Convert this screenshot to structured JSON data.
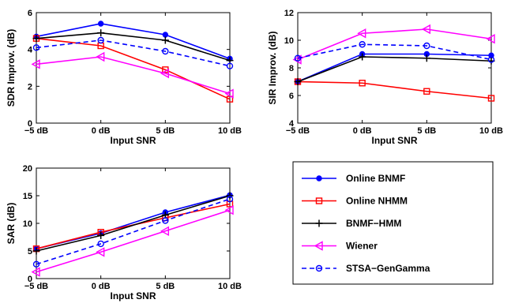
{
  "chart_data": [
    {
      "type": "line",
      "xlabel": "Input SNR",
      "ylabel": "SDR Improv. (dB)",
      "categories": [
        "−5 dB",
        "0 dB",
        "5 dB",
        "10 dB"
      ],
      "ylim": [
        0,
        6
      ],
      "yticks": [
        "0",
        "2",
        "4",
        "6"
      ],
      "grid": false,
      "series": [
        {
          "name": "Online BNMF",
          "values": [
            4.7,
            5.4,
            4.8,
            3.5
          ],
          "color": "#0000ff",
          "marker": "dot",
          "dash": "solid"
        },
        {
          "name": "Online NHMM",
          "values": [
            4.6,
            4.2,
            2.9,
            1.3
          ],
          "color": "#ff0000",
          "marker": "square",
          "dash": "solid"
        },
        {
          "name": "BNMF−HMM",
          "values": [
            4.6,
            4.9,
            4.5,
            3.4
          ],
          "color": "#000000",
          "marker": "plus",
          "dash": "solid"
        },
        {
          "name": "Wiener",
          "values": [
            3.2,
            3.6,
            2.7,
            1.6
          ],
          "color": "#ff00ff",
          "marker": "triangle-left",
          "dash": "solid"
        },
        {
          "name": "STSA−GenGamma",
          "values": [
            4.1,
            4.5,
            3.9,
            3.1
          ],
          "color": "#0000ff",
          "marker": "circle",
          "dash": "dashed"
        }
      ]
    },
    {
      "type": "line",
      "xlabel": "Input SNR",
      "ylabel": "SIR Improv. (dB)",
      "categories": [
        "−5 dB",
        "0 dB",
        "5 dB",
        "10 dB"
      ],
      "ylim": [
        4,
        12
      ],
      "yticks": [
        "4",
        "6",
        "8",
        "10",
        "12"
      ],
      "grid": false,
      "series": [
        {
          "name": "Online BNMF",
          "values": [
            7.0,
            9.0,
            9.0,
            8.9
          ],
          "color": "#0000ff",
          "marker": "dot",
          "dash": "solid"
        },
        {
          "name": "Online NHMM",
          "values": [
            7.0,
            6.9,
            6.3,
            5.8
          ],
          "color": "#ff0000",
          "marker": "square",
          "dash": "solid"
        },
        {
          "name": "BNMF−HMM",
          "values": [
            7.0,
            8.8,
            8.7,
            8.5
          ],
          "color": "#000000",
          "marker": "plus",
          "dash": "solid"
        },
        {
          "name": "Wiener",
          "values": [
            8.6,
            10.5,
            10.8,
            10.1
          ],
          "color": "#ff00ff",
          "marker": "triangle-left",
          "dash": "solid"
        },
        {
          "name": "STSA−GenGamma",
          "values": [
            8.7,
            9.7,
            9.6,
            8.6
          ],
          "color": "#0000ff",
          "marker": "circle",
          "dash": "dashed"
        }
      ]
    },
    {
      "type": "line",
      "xlabel": "Input SNR",
      "ylabel": "SAR (dB)",
      "categories": [
        "−5 dB",
        "0 dB",
        "5 dB",
        "10 dB"
      ],
      "ylim": [
        0,
        20
      ],
      "yticks": [
        "0",
        "5",
        "10",
        "15",
        "20"
      ],
      "grid": false,
      "series": [
        {
          "name": "Online BNMF",
          "values": [
            5.4,
            8.2,
            12.0,
            15.1
          ],
          "color": "#0000ff",
          "marker": "dot",
          "dash": "solid"
        },
        {
          "name": "Online NHMM",
          "values": [
            5.4,
            8.4,
            11.0,
            13.5
          ],
          "color": "#ff0000",
          "marker": "square",
          "dash": "solid"
        },
        {
          "name": "BNMF−HMM",
          "values": [
            5.0,
            7.8,
            11.5,
            15.0
          ],
          "color": "#000000",
          "marker": "plus",
          "dash": "solid"
        },
        {
          "name": "Wiener",
          "values": [
            1.2,
            4.8,
            8.6,
            12.4
          ],
          "color": "#ff00ff",
          "marker": "triangle-left",
          "dash": "solid"
        },
        {
          "name": "STSA−GenGamma",
          "values": [
            2.6,
            6.3,
            10.5,
            14.4
          ],
          "color": "#0000ff",
          "marker": "circle",
          "dash": "dashed"
        }
      ]
    }
  ],
  "legend": {
    "entries": [
      "Online BNMF",
      "Online NHMM",
      "BNMF−HMM",
      "Wiener",
      "STSA−GenGamma"
    ]
  }
}
